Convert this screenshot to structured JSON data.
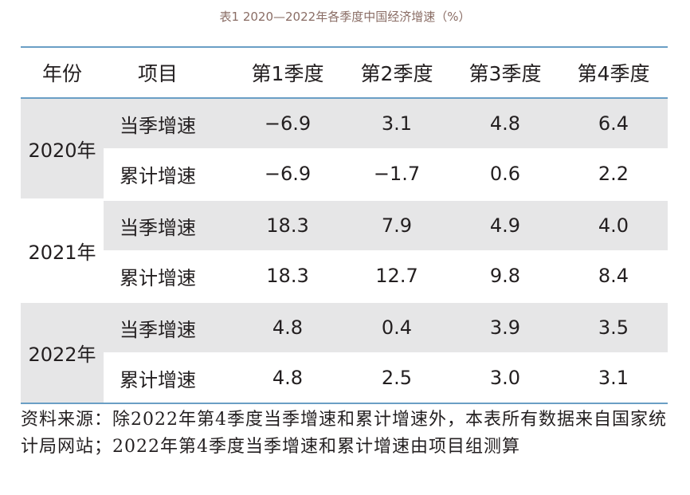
{
  "caption": "表1 2020—2022年各季度中国经济增速（%）",
  "header": {
    "year": "年份",
    "item": "项目",
    "q1": "第1季度",
    "q2": "第2季度",
    "q3": "第3季度",
    "q4": "第4季度"
  },
  "groups": [
    {
      "year": "2020年",
      "rows": [
        {
          "item": "当季增速",
          "q1": "−6.9",
          "q2": "3.1",
          "q3": "4.8",
          "q4": "6.4"
        },
        {
          "item": "累计增速",
          "q1": "−6.9",
          "q2": "−1.7",
          "q3": "0.6",
          "q4": "2.2"
        }
      ]
    },
    {
      "year": "2021年",
      "rows": [
        {
          "item": "当季增速",
          "q1": "18.3",
          "q2": "7.9",
          "q3": "4.9",
          "q4": "4.0"
        },
        {
          "item": "累计增速",
          "q1": "18.3",
          "q2": "12.7",
          "q3": "9.8",
          "q4": "8.4"
        }
      ]
    },
    {
      "year": "2022年",
      "rows": [
        {
          "item": "当季增速",
          "q1": "4.8",
          "q2": "0.4",
          "q3": "3.9",
          "q4": "3.5"
        },
        {
          "item": "累计增速",
          "q1": "4.8",
          "q2": "2.5",
          "q3": "3.0",
          "q4": "3.1"
        }
      ]
    }
  ],
  "source": "资料来源：除2022年第4季度当季增速和累计增速外，本表所有数据来自国家统计局网站；2022年第4季度当季增速和累计增速由项目组测算"
}
